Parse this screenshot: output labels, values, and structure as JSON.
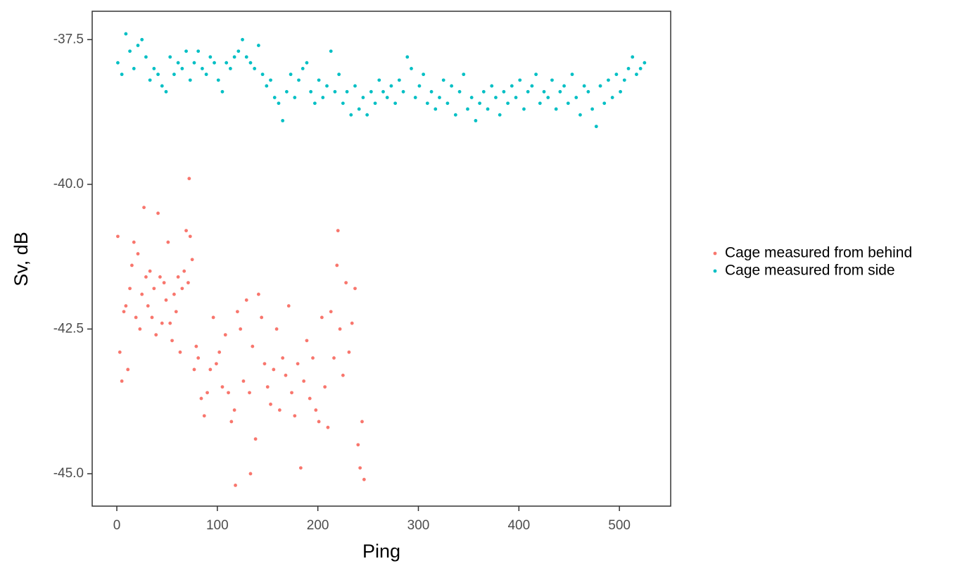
{
  "chart_data": {
    "type": "scatter",
    "x_label": "Ping",
    "y_label": "Sv, dB",
    "xlim": [
      -24.5,
      551
    ],
    "ylim": [
      -45.56,
      -37.01
    ],
    "xticks": [
      0,
      100,
      200,
      300,
      400,
      500
    ],
    "yticks": [
      -37.5,
      {
        "value": -40,
        "label": "-40.0"
      },
      -42.5,
      {
        "value": -45,
        "label": "-45.0"
      }
    ],
    "grid": false,
    "legend": "right",
    "series": [
      {
        "name": "Cage measured from behind",
        "color": "#f8766d",
        "x": [
          1,
          3,
          5,
          7,
          9,
          11,
          13,
          15,
          17,
          19,
          21,
          23,
          25,
          27,
          29,
          31,
          33,
          35,
          37,
          39,
          41,
          43,
          45,
          47,
          49,
          51,
          53,
          55,
          57,
          59,
          61,
          63,
          65,
          67,
          69,
          71,
          72,
          73,
          75,
          77,
          79,
          81,
          84,
          87,
          90,
          93,
          96,
          99,
          102,
          105,
          108,
          111,
          114,
          117,
          118,
          120,
          123,
          126,
          129,
          132,
          133,
          135,
          138,
          141,
          144,
          147,
          150,
          153,
          156,
          159,
          162,
          165,
          168,
          171,
          174,
          177,
          180,
          183,
          186,
          189,
          192,
          195,
          198,
          201,
          204,
          207,
          210,
          213,
          216,
          219,
          220,
          222,
          225,
          228,
          231,
          234,
          237,
          240,
          242,
          244,
          246
        ],
        "values": [
          -40.9,
          -42.9,
          -43.4,
          -42.2,
          -42.1,
          -43.2,
          -41.8,
          -41.4,
          -41.0,
          -42.3,
          -41.2,
          -42.5,
          -41.9,
          -40.4,
          -41.6,
          -42.1,
          -41.5,
          -42.3,
          -41.8,
          -42.6,
          -40.5,
          -41.6,
          -42.4,
          -41.7,
          -42.0,
          -41.0,
          -42.4,
          -42.7,
          -41.9,
          -42.2,
          -41.6,
          -42.9,
          -41.8,
          -41.5,
          -40.8,
          -41.7,
          -39.9,
          -40.9,
          -41.3,
          -43.2,
          -42.8,
          -43.0,
          -43.7,
          -44.0,
          -43.6,
          -43.2,
          -42.3,
          -43.1,
          -42.9,
          -43.5,
          -42.6,
          -43.6,
          -44.1,
          -43.9,
          -45.2,
          -42.2,
          -42.5,
          -43.4,
          -42.0,
          -43.6,
          -45.0,
          -42.8,
          -44.4,
          -41.9,
          -42.3,
          -43.1,
          -43.5,
          -43.8,
          -43.2,
          -42.5,
          -43.9,
          -43.0,
          -43.3,
          -42.1,
          -43.6,
          -44.0,
          -43.1,
          -44.9,
          -43.4,
          -42.7,
          -43.7,
          -43.0,
          -43.9,
          -44.1,
          -42.3,
          -43.5,
          -44.2,
          -42.2,
          -43.0,
          -41.4,
          -40.8,
          -42.5,
          -43.3,
          -41.7,
          -42.9,
          -42.4,
          -41.8,
          -44.5,
          -44.9,
          -44.1,
          -45.1
        ]
      },
      {
        "name": "Cage measured from side",
        "color": "#00bfc4",
        "x": [
          1,
          5,
          9,
          13,
          17,
          21,
          25,
          29,
          33,
          37,
          41,
          45,
          49,
          53,
          57,
          61,
          65,
          69,
          73,
          77,
          81,
          85,
          89,
          93,
          97,
          101,
          105,
          109,
          113,
          117,
          121,
          125,
          129,
          133,
          137,
          141,
          145,
          149,
          153,
          157,
          161,
          165,
          169,
          173,
          177,
          181,
          185,
          189,
          193,
          197,
          201,
          205,
          209,
          213,
          217,
          221,
          225,
          229,
          233,
          237,
          241,
          245,
          249,
          253,
          257,
          261,
          265,
          269,
          273,
          277,
          281,
          285,
          289,
          293,
          297,
          301,
          305,
          309,
          313,
          317,
          321,
          325,
          329,
          333,
          337,
          341,
          345,
          349,
          353,
          357,
          361,
          365,
          369,
          373,
          377,
          381,
          385,
          389,
          393,
          397,
          401,
          405,
          409,
          413,
          417,
          421,
          425,
          429,
          433,
          437,
          441,
          445,
          449,
          453,
          457,
          461,
          465,
          469,
          473,
          477,
          481,
          485,
          489,
          493,
          497,
          501,
          505,
          509,
          513,
          517,
          521,
          525
        ],
        "values": [
          -37.9,
          -38.1,
          -37.4,
          -37.7,
          -38.0,
          -37.6,
          -37.5,
          -37.8,
          -38.2,
          -38.0,
          -38.1,
          -38.3,
          -38.4,
          -37.8,
          -38.1,
          -37.9,
          -38.0,
          -37.7,
          -38.2,
          -37.9,
          -37.7,
          -38.0,
          -38.1,
          -37.8,
          -37.9,
          -38.2,
          -38.4,
          -37.9,
          -38.0,
          -37.8,
          -37.7,
          -37.5,
          -37.8,
          -37.9,
          -38.0,
          -37.6,
          -38.1,
          -38.3,
          -38.2,
          -38.5,
          -38.6,
          -38.9,
          -38.4,
          -38.1,
          -38.5,
          -38.2,
          -38.0,
          -37.9,
          -38.4,
          -38.6,
          -38.2,
          -38.5,
          -38.3,
          -37.7,
          -38.4,
          -38.1,
          -38.6,
          -38.4,
          -38.8,
          -38.3,
          -38.7,
          -38.5,
          -38.8,
          -38.4,
          -38.6,
          -38.2,
          -38.4,
          -38.5,
          -38.3,
          -38.6,
          -38.2,
          -38.4,
          -37.8,
          -38.0,
          -38.5,
          -38.3,
          -38.1,
          -38.6,
          -38.4,
          -38.7,
          -38.5,
          -38.2,
          -38.6,
          -38.3,
          -38.8,
          -38.4,
          -38.1,
          -38.7,
          -38.5,
          -38.9,
          -38.6,
          -38.4,
          -38.7,
          -38.3,
          -38.5,
          -38.8,
          -38.4,
          -38.6,
          -38.3,
          -38.5,
          -38.2,
          -38.7,
          -38.4,
          -38.3,
          -38.1,
          -38.6,
          -38.4,
          -38.5,
          -38.2,
          -38.7,
          -38.4,
          -38.3,
          -38.6,
          -38.1,
          -38.5,
          -38.8,
          -38.3,
          -38.4,
          -38.7,
          -39.0,
          -38.3,
          -38.6,
          -38.2,
          -38.5,
          -38.1,
          -38.4,
          -38.2,
          -38.0,
          -37.8,
          -38.1,
          -38.0,
          -37.9
        ]
      }
    ]
  }
}
